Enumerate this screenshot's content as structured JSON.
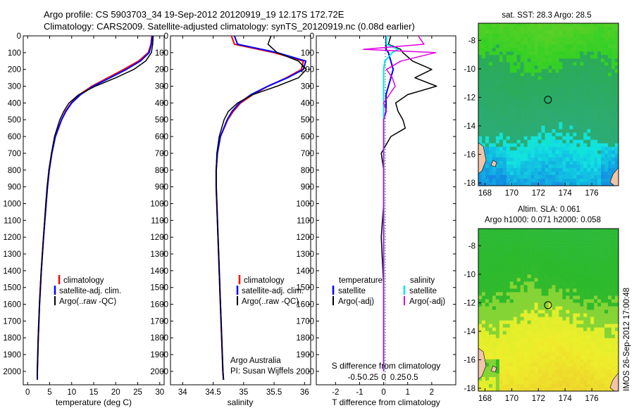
{
  "title": {
    "line1": "Argo profile: CS 5903703_34 19-Sep-2012 20120919_19 12.17S 172.72E",
    "line2": "Climatology: CARS2009. Satellite-adjusted climatology: synTS_20120919.nc (0.08d earlier)"
  },
  "colors": {
    "climatology": "#ff0000",
    "satellite": "#0000ff",
    "argo": "#000000",
    "sal_satellite": "#00e5e5",
    "sal_argo": "#e000e0"
  },
  "depth_ticks": [
    0,
    100,
    200,
    300,
    400,
    500,
    600,
    700,
    800,
    900,
    1000,
    1100,
    1200,
    1300,
    1400,
    1500,
    1600,
    1700,
    1800,
    1900,
    2000
  ],
  "note": {
    "line1": "Argo Australia",
    "line2": "PI: Susan Wijffels"
  },
  "map_top": {
    "title": "sat. SST: 28.3 Argo: 28.5",
    "xticks": [
      "168",
      "170",
      "172",
      "174",
      "176"
    ],
    "yticks": [
      "-8",
      "-10",
      "-12",
      "-14",
      "-16",
      "-18"
    ]
  },
  "map_bottom": {
    "title1": "Altim. SLA: 0.061",
    "title2": "Argo h1000: 0.071 h2000: 0.058",
    "xticks": [
      "168",
      "170",
      "172",
      "174",
      "176"
    ],
    "yticks": [
      "-8",
      "-10",
      "-12",
      "-14",
      "-16",
      "-18"
    ]
  },
  "side_stamp": "IMOS 26-Sep-2012 17:00:48",
  "chart_data": [
    {
      "type": "line",
      "panel": "temperature",
      "xlabel": "temperature (deg C)",
      "ylim": [
        2080,
        0
      ],
      "xlim": [
        -1,
        31
      ],
      "xticks": [
        0,
        5,
        10,
        15,
        20,
        25,
        30
      ],
      "legend": [
        "climatology",
        "satellite-adj. clim.",
        "Argo(..raw -QC)"
      ],
      "depth": [
        0,
        50,
        100,
        150,
        200,
        250,
        300,
        350,
        400,
        450,
        500,
        600,
        700,
        800,
        900,
        1000,
        1200,
        1400,
        1600,
        1800,
        2000,
        2050
      ],
      "series": [
        {
          "name": "climatology",
          "values": [
            28.2,
            28.0,
            27.4,
            25.2,
            21.8,
            18.2,
            14.6,
            11.8,
            9.9,
            8.6,
            7.7,
            6.3,
            5.5,
            4.9,
            4.5,
            4.2,
            3.6,
            3.1,
            2.7,
            2.4,
            2.2,
            2.2
          ]
        },
        {
          "name": "satellite-adj. clim.",
          "values": [
            28.3,
            28.1,
            27.6,
            25.6,
            22.4,
            18.7,
            14.9,
            12.0,
            10.0,
            8.7,
            7.7,
            6.3,
            5.5,
            4.9,
            4.5,
            4.2,
            3.6,
            3.1,
            2.7,
            2.4,
            2.2,
            2.2
          ]
        },
        {
          "name": "Argo(..raw -QC)",
          "values": [
            28.5,
            28.4,
            28.1,
            26.8,
            24.1,
            20.0,
            15.4,
            11.6,
            9.4,
            8.2,
            7.3,
            6.1,
            5.4,
            4.8,
            4.4,
            4.1,
            3.6,
            3.1,
            2.7,
            2.4,
            2.2,
            2.2
          ]
        }
      ]
    },
    {
      "type": "line",
      "panel": "salinity",
      "xlabel": "salinity",
      "ylim": [
        2080,
        0
      ],
      "xlim": [
        33.8,
        36.1
      ],
      "xticks": [
        34,
        34.5,
        35,
        35.5,
        36
      ],
      "legend": [
        "climatology",
        "satellite-adj. clim.",
        "Argo(..raw -QC)"
      ],
      "depth": [
        0,
        50,
        100,
        150,
        200,
        250,
        300,
        350,
        400,
        450,
        500,
        600,
        700,
        800,
        900,
        1000,
        1200,
        1400,
        1600,
        1800,
        2000,
        2050
      ],
      "series": [
        {
          "name": "climatology",
          "values": [
            34.8,
            34.85,
            35.5,
            35.98,
            35.95,
            35.7,
            35.4,
            35.15,
            34.95,
            34.83,
            34.74,
            34.62,
            34.57,
            34.55,
            34.55,
            34.56,
            34.58,
            34.6,
            34.62,
            34.64,
            34.66,
            34.67
          ]
        },
        {
          "name": "satellite-adj. clim.",
          "values": [
            34.85,
            34.9,
            35.55,
            36.02,
            35.98,
            35.72,
            35.4,
            35.12,
            34.93,
            34.81,
            34.73,
            34.62,
            34.57,
            34.55,
            34.55,
            34.56,
            34.58,
            34.6,
            34.62,
            34.64,
            34.66,
            34.67
          ]
        },
        {
          "name": "Argo(..raw -QC)",
          "values": [
            35.45,
            35.4,
            35.55,
            35.9,
            36.03,
            35.9,
            35.55,
            35.15,
            34.9,
            34.75,
            34.68,
            34.6,
            34.56,
            34.55,
            34.55,
            34.56,
            34.58,
            34.6,
            34.62,
            34.64,
            34.66,
            34.67
          ]
        }
      ]
    },
    {
      "type": "line",
      "panel": "difference",
      "xlabel_top": "S difference from climatology",
      "xlabel": "T difference from climatology",
      "ylim": [
        2080,
        0
      ],
      "xlim": [
        -2.8,
        3.0
      ],
      "xticks_bottom": [
        -2,
        -1,
        0,
        1,
        2
      ],
      "xticks_top": [
        "-0.5",
        "-0.25",
        "0",
        "0.25",
        "0.5"
      ],
      "legend_temperature_heading": "temperature",
      "legend_salinity_heading": "salinity",
      "legend": [
        "satellite",
        "Argo(-adj)",
        "satellite",
        "Argo(-adj)"
      ],
      "depth": [
        0,
        50,
        80,
        100,
        150,
        200,
        250,
        300,
        350,
        400,
        450,
        500,
        550,
        600,
        700,
        800,
        1000,
        1200,
        1500,
        2000
      ],
      "series": [
        {
          "name": "temperature satellite",
          "values": [
            0.1,
            0.1,
            0.1,
            0.2,
            0.3,
            0.4,
            0.3,
            0.2,
            0.1,
            0.1,
            0.1,
            0.0,
            0.0,
            0.0,
            0.0,
            0.0,
            0.0,
            0.0,
            0.0,
            0.0
          ]
        },
        {
          "name": "temperature Argo(-adj)",
          "values": [
            0.3,
            0.2,
            0.7,
            0.8,
            1.2,
            2.0,
            1.3,
            2.2,
            1.0,
            0.5,
            0.6,
            0.8,
            0.9,
            0.3,
            -0.1,
            0.0,
            0.0,
            -0.1,
            0.0,
            0.0
          ]
        },
        {
          "name": "salinity satellite",
          "values": [
            0.05,
            0.05,
            0.25,
            0.15,
            0.02,
            0.0,
            0.0,
            0.0,
            0.0,
            0.0,
            0.0,
            0.0,
            0.0,
            0.0,
            0.0,
            0.0,
            0.0,
            0.0,
            0.0,
            0.0
          ]
        },
        {
          "name": "salinity Argo(-adj)",
          "values": [
            0.6,
            0.7,
            -0.35,
            0.9,
            0.3,
            0.05,
            0.15,
            0.2,
            0.1,
            0.0,
            0.05,
            0.0,
            0.0,
            0.0,
            0.0,
            0.0,
            0.0,
            0.0,
            0.0,
            0.0
          ]
        }
      ]
    },
    {
      "type": "heatmap",
      "panel": "sst-map",
      "xlim": [
        167.5,
        178
      ],
      "ylim": [
        -18.2,
        -6.8
      ],
      "marker": [
        172.72,
        -12.17
      ]
    },
    {
      "type": "heatmap",
      "panel": "sla-map",
      "xlim": [
        167.5,
        178
      ],
      "ylim": [
        -18.2,
        -6.8
      ],
      "marker": [
        172.72,
        -12.17
      ]
    }
  ]
}
